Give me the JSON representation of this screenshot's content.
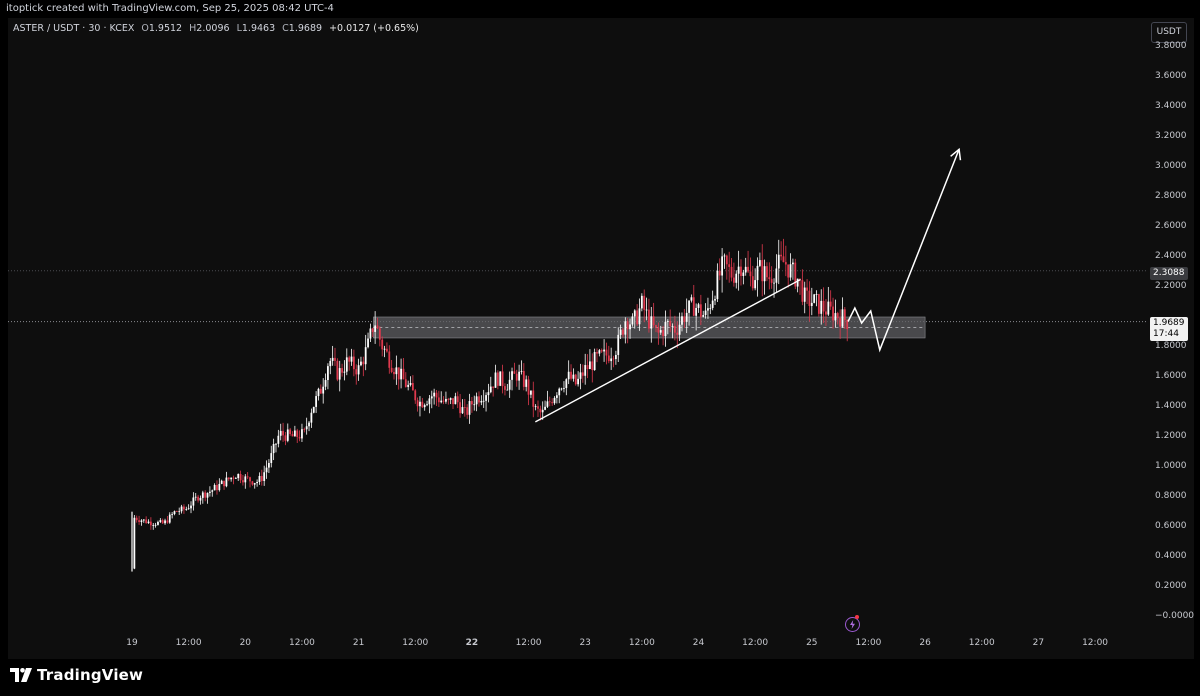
{
  "header": {
    "credit": "itoptick created with TradingView.com, Sep 25, 2025 08:42 UTC-4"
  },
  "symbol": {
    "name": "ASTER / USDT · 30 · KCEX",
    "open_label": "O",
    "open": "1.9512",
    "high_label": "H",
    "high": "2.0096",
    "low_label": "L",
    "low": "1.9463",
    "close_label": "C",
    "close": "1.9689",
    "change": "+0.0127 (+0.65%)"
  },
  "price_axis": {
    "unit_button": "USDT",
    "highlight_price": "2.3088",
    "last_price": "1.9689",
    "countdown": "17:44"
  },
  "brand": {
    "logo_text": "TradingView"
  },
  "colors": {
    "up": "#ffffff",
    "down": "#e0394e",
    "background": "#0e0e0e",
    "drawing": "#ffffff",
    "zone": "#5d5e62"
  },
  "chart_data": {
    "type": "candlestick",
    "ylim": [
      -0.1,
      3.95
    ],
    "y_ticks": [
      "3.8000",
      "3.6000",
      "3.4000",
      "3.2000",
      "3.0000",
      "2.8000",
      "2.6000",
      "2.4000",
      "2.2000",
      "1.8000",
      "1.6000",
      "1.4000",
      "1.2000",
      "1.0000",
      "0.8000",
      "0.6000",
      "0.4000",
      "0.2000",
      "−0.0000"
    ],
    "y_tick_values": [
      3.8,
      3.6,
      3.4,
      3.2,
      3.0,
      2.8,
      2.6,
      2.4,
      2.2,
      1.8,
      1.6,
      1.4,
      1.2,
      1.0,
      0.8,
      0.6,
      0.4,
      0.2,
      0.0
    ],
    "x_ticks": [
      {
        "label": "19",
        "t": 0
      },
      {
        "label": "12:00",
        "t": 0.5
      },
      {
        "label": "20",
        "t": 1
      },
      {
        "label": "12:00",
        "t": 1.5
      },
      {
        "label": "21",
        "t": 2
      },
      {
        "label": "12:00",
        "t": 2.5
      },
      {
        "label": "22",
        "t": 3,
        "bold": true
      },
      {
        "label": "12:00",
        "t": 3.5
      },
      {
        "label": "23",
        "t": 4
      },
      {
        "label": "12:00",
        "t": 4.5
      },
      {
        "label": "24",
        "t": 5
      },
      {
        "label": "12:00",
        "t": 5.5
      },
      {
        "label": "25",
        "t": 6
      },
      {
        "label": "12:00",
        "t": 6.5
      },
      {
        "label": "26",
        "t": 7
      },
      {
        "label": "12:00",
        "t": 7.5
      },
      {
        "label": "27",
        "t": 8
      },
      {
        "label": "12:00",
        "t": 8.5
      }
    ],
    "price_path": [
      [
        0.0,
        0.32
      ],
      [
        0.02,
        0.66
      ],
      [
        0.15,
        0.63
      ],
      [
        0.28,
        0.62
      ],
      [
        0.38,
        0.7
      ],
      [
        0.48,
        0.72
      ],
      [
        0.58,
        0.8
      ],
      [
        0.7,
        0.84
      ],
      [
        0.82,
        0.9
      ],
      [
        0.92,
        0.95
      ],
      [
        1.0,
        0.92
      ],
      [
        1.1,
        0.9
      ],
      [
        1.14,
        0.92
      ],
      [
        1.22,
        1.05
      ],
      [
        1.3,
        1.22
      ],
      [
        1.42,
        1.2
      ],
      [
        1.52,
        1.22
      ],
      [
        1.58,
        1.38
      ],
      [
        1.66,
        1.5
      ],
      [
        1.74,
        1.72
      ],
      [
        1.82,
        1.62
      ],
      [
        1.9,
        1.7
      ],
      [
        2.0,
        1.65
      ],
      [
        2.08,
        1.8
      ],
      [
        2.14,
        1.98
      ],
      [
        2.2,
        1.82
      ],
      [
        2.3,
        1.68
      ],
      [
        2.42,
        1.55
      ],
      [
        2.54,
        1.43
      ],
      [
        2.66,
        1.48
      ],
      [
        2.78,
        1.42
      ],
      [
        2.86,
        1.45
      ],
      [
        2.94,
        1.35
      ],
      [
        3.02,
        1.45
      ],
      [
        3.12,
        1.5
      ],
      [
        3.22,
        1.6
      ],
      [
        3.3,
        1.55
      ],
      [
        3.4,
        1.62
      ],
      [
        3.48,
        1.55
      ],
      [
        3.56,
        1.38
      ],
      [
        3.62,
        1.35
      ],
      [
        3.7,
        1.45
      ],
      [
        3.78,
        1.55
      ],
      [
        3.86,
        1.6
      ],
      [
        3.92,
        1.55
      ],
      [
        4.0,
        1.65
      ],
      [
        4.1,
        1.72
      ],
      [
        4.2,
        1.75
      ],
      [
        4.28,
        1.8
      ],
      [
        4.36,
        2.0
      ],
      [
        4.42,
        1.95
      ],
      [
        4.5,
        2.08
      ],
      [
        4.58,
        1.95
      ],
      [
        4.64,
        1.88
      ],
      [
        4.72,
        1.95
      ],
      [
        4.8,
        1.92
      ],
      [
        4.88,
        2.02
      ],
      [
        4.96,
        2.08
      ],
      [
        5.06,
        2.0
      ],
      [
        5.14,
        2.18
      ],
      [
        5.22,
        2.35
      ],
      [
        5.3,
        2.28
      ],
      [
        5.38,
        2.36
      ],
      [
        5.46,
        2.25
      ],
      [
        5.54,
        2.32
      ],
      [
        5.62,
        2.26
      ],
      [
        5.7,
        2.34
      ],
      [
        5.76,
        2.37
      ],
      [
        5.82,
        2.3
      ],
      [
        5.88,
        2.25
      ],
      [
        5.94,
        2.12
      ],
      [
        6.02,
        2.1
      ],
      [
        6.1,
        2.06
      ],
      [
        6.18,
        2.03
      ],
      [
        6.26,
        2.0
      ],
      [
        6.32,
        1.97
      ]
    ],
    "zone": {
      "t_start": 2.13,
      "t_end": 7.0,
      "y_low": 1.86,
      "y_high": 2.0
    },
    "trendlines": [
      {
        "t1": 3.56,
        "y1": 1.3,
        "t2": 5.9,
        "y2": 2.25
      }
    ],
    "projection": [
      [
        6.32,
        1.97
      ],
      [
        6.38,
        2.06
      ],
      [
        6.44,
        1.96
      ],
      [
        6.52,
        2.04
      ],
      [
        6.6,
        1.78
      ],
      [
        7.3,
        3.12
      ]
    ]
  }
}
